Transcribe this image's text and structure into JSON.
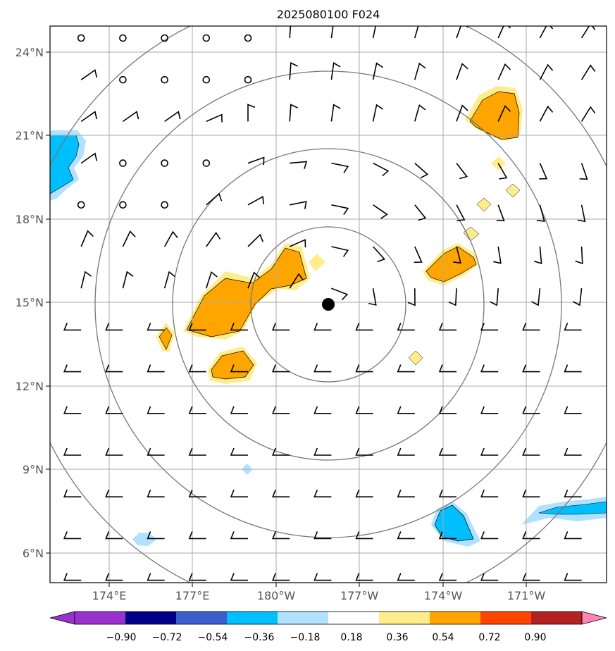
{
  "title": "2025080100 F024",
  "x_ticks": [
    "174°E",
    "177°E",
    "180°W",
    "177°W",
    "174°W",
    "171°W"
  ],
  "y_ticks": [
    "24°N",
    "21°N",
    "18°N",
    "15°N",
    "12°N",
    "9°N",
    "6°N"
  ],
  "colorbar": {
    "labels": [
      "−0.90",
      "−0.72",
      "−0.54",
      "−0.36",
      "−0.18",
      "0.18",
      "0.36",
      "0.54",
      "0.72",
      "0.90"
    ],
    "colors": {
      "under": "#9932cc",
      "bins": [
        "#9932cc",
        "#00008b",
        "#3a5fcd",
        "#00bfff",
        "#b0e2ff",
        "#ffffff",
        "#ffec8b",
        "#ffa500",
        "#ff4500",
        "#b22222"
      ],
      "over": "#ff83b4"
    }
  },
  "center_marker": "storm-center-dot"
}
